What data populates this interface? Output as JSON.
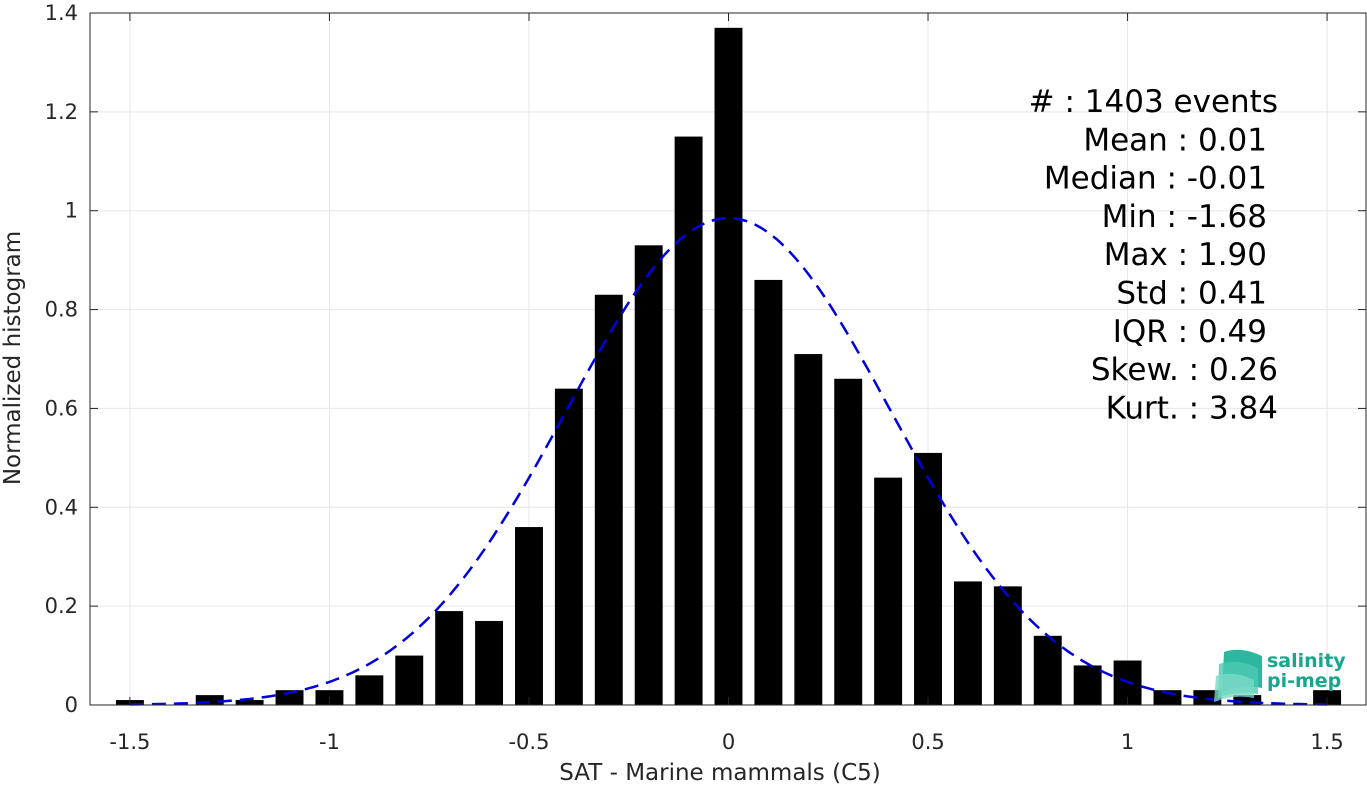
{
  "chart_data": {
    "type": "bar",
    "xlabel": "SAT - Marine mammals (C5)",
    "ylabel": "Normalized histogram",
    "xlim": [
      -1.6,
      1.6
    ],
    "ylim": [
      0,
      1.4
    ],
    "xticks": [
      -1.5,
      -1,
      -0.5,
      0,
      0.5,
      1,
      1.5
    ],
    "xtick_labels": [
      "-1.5",
      "-1",
      "-0.5",
      "0",
      "0.5",
      "1",
      "1.5"
    ],
    "yticks": [
      0,
      0.2,
      0.4,
      0.6,
      0.8,
      1,
      1.2,
      1.4
    ],
    "ytick_labels": [
      "0",
      "0.2",
      "0.4",
      "0.6",
      "0.8",
      "1",
      "1.2",
      "1.4"
    ],
    "grid": true,
    "bar_color": "#000000",
    "fit_color": "#0000e0",
    "bins": [
      {
        "x": -1.5,
        "value": 0.01
      },
      {
        "x": -1.3,
        "value": 0.02
      },
      {
        "x": -1.2,
        "value": 0.01
      },
      {
        "x": -1.1,
        "value": 0.03
      },
      {
        "x": -1.0,
        "value": 0.03
      },
      {
        "x": -0.9,
        "value": 0.06
      },
      {
        "x": -0.8,
        "value": 0.1
      },
      {
        "x": -0.7,
        "value": 0.19
      },
      {
        "x": -0.6,
        "value": 0.17
      },
      {
        "x": -0.5,
        "value": 0.36
      },
      {
        "x": -0.4,
        "value": 0.64
      },
      {
        "x": -0.3,
        "value": 0.83
      },
      {
        "x": -0.2,
        "value": 0.93
      },
      {
        "x": -0.1,
        "value": 1.15
      },
      {
        "x": 0.0,
        "value": 1.37
      },
      {
        "x": 0.1,
        "value": 0.86
      },
      {
        "x": 0.2,
        "value": 0.71
      },
      {
        "x": 0.3,
        "value": 0.66
      },
      {
        "x": 0.4,
        "value": 0.46
      },
      {
        "x": 0.5,
        "value": 0.51
      },
      {
        "x": 0.6,
        "value": 0.25
      },
      {
        "x": 0.7,
        "value": 0.24
      },
      {
        "x": 0.8,
        "value": 0.14
      },
      {
        "x": 0.9,
        "value": 0.08
      },
      {
        "x": 1.0,
        "value": 0.09
      },
      {
        "x": 1.1,
        "value": 0.03
      },
      {
        "x": 1.2,
        "value": 0.03
      },
      {
        "x": 1.3,
        "value": 0.02
      },
      {
        "x": 1.5,
        "value": 0.03
      }
    ],
    "fit": {
      "type": "normal",
      "mean": 0.0,
      "std": 0.405,
      "peak": 0.985
    },
    "annotations": [
      "#  : 1403 events",
      "Mean : 0.01",
      "Median : -0.01",
      "Min : -1.68",
      "Max : 1.90",
      "Std : 0.41",
      "IQR : 0.49",
      "Skew. : 0.26",
      "Kurt. : 3.84"
    ]
  },
  "logo": {
    "line1": "salinity",
    "line2": "pi-mep"
  }
}
